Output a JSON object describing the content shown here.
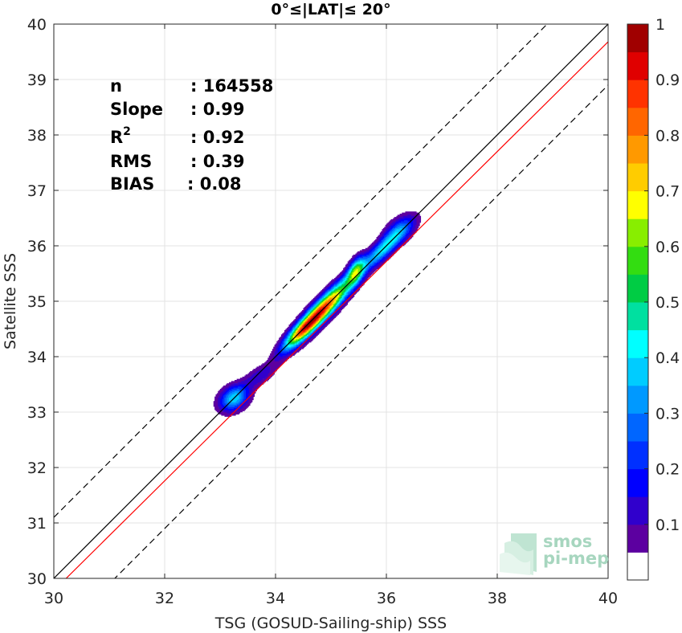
{
  "chart_data": {
    "type": "heatmap",
    "title": "0°≤|LAT|≤ 20°",
    "xlabel": "TSG (GOSUD-Sailing-ship) SSS",
    "ylabel": "Satellite SSS",
    "xlim": [
      30,
      40
    ],
    "ylim": [
      30,
      40
    ],
    "xticks": [
      30,
      32,
      34,
      36,
      38,
      40
    ],
    "yticks": [
      30,
      31,
      32,
      33,
      34,
      35,
      36,
      37,
      38,
      39,
      40
    ],
    "grid": true,
    "stats": [
      {
        "label": "n",
        "value": ": 164558"
      },
      {
        "label": "Slope",
        "value": ": 0.99"
      },
      {
        "label": "R",
        "sup": "2",
        "value": ": 0.92"
      },
      {
        "label": "RMS",
        "value": ": 0.39"
      },
      {
        "label": "BIAS",
        "value": ": 0.08"
      }
    ],
    "reference_lines": [
      {
        "name": "identity",
        "slope": 1,
        "intercept": 0,
        "color": "#000000",
        "style": "solid"
      },
      {
        "name": "regression",
        "slope": 0.99,
        "intercept": 0.08,
        "color": "#ff0000",
        "style": "solid"
      },
      {
        "name": "upper bound",
        "slope": 1,
        "intercept": 1.1,
        "color": "#000000",
        "style": "dashed"
      },
      {
        "name": "lower bound",
        "slope": 1,
        "intercept": -1.1,
        "color": "#000000",
        "style": "dashed"
      }
    ],
    "density_peaks": [
      {
        "x": 34.85,
        "y": 34.85,
        "sx": 0.38,
        "sy": 0.4,
        "rho": 0.92,
        "amp": 1.0
      },
      {
        "x": 34.45,
        "y": 34.45,
        "sx": 0.22,
        "sy": 0.22,
        "rho": 0.85,
        "amp": 0.45
      },
      {
        "x": 35.45,
        "y": 35.55,
        "sx": 0.11,
        "sy": 0.17,
        "rho": 0.5,
        "amp": 0.5
      },
      {
        "x": 35.95,
        "y": 35.95,
        "sx": 0.25,
        "sy": 0.25,
        "rho": 0.85,
        "amp": 0.45
      },
      {
        "x": 36.25,
        "y": 36.3,
        "sx": 0.2,
        "sy": 0.18,
        "rho": 0.5,
        "amp": 0.25
      },
      {
        "x": 33.25,
        "y": 33.25,
        "sx": 0.18,
        "sy": 0.16,
        "rho": 0.3,
        "amp": 0.45
      },
      {
        "x": 33.7,
        "y": 33.65,
        "sx": 0.2,
        "sy": 0.15,
        "rho": 0.6,
        "amp": 0.15
      }
    ],
    "colorbar": {
      "levels": [
        0,
        0.05,
        0.1,
        0.15,
        0.2,
        0.25,
        0.3,
        0.35,
        0.4,
        0.45,
        0.5,
        0.55,
        0.6,
        0.65,
        0.7,
        0.75,
        0.8,
        0.85,
        0.9,
        0.95,
        1.0
      ],
      "colors": [
        "#ffffff",
        "#5c00a0",
        "#3000cc",
        "#0000ff",
        "#0030ff",
        "#0066ff",
        "#0099ff",
        "#00ccff",
        "#00ffff",
        "#00e0a0",
        "#00cc44",
        "#33dd11",
        "#88ee00",
        "#ffff00",
        "#ffcc00",
        "#ff9900",
        "#ff6600",
        "#ff3300",
        "#e00000",
        "#a00000"
      ],
      "ticks": [
        0.1,
        0.2,
        0.3,
        0.4,
        0.5,
        0.6,
        0.7,
        0.8,
        0.9,
        1
      ]
    }
  },
  "logo": {
    "line1": "smos",
    "line2": "pi-mep"
  }
}
